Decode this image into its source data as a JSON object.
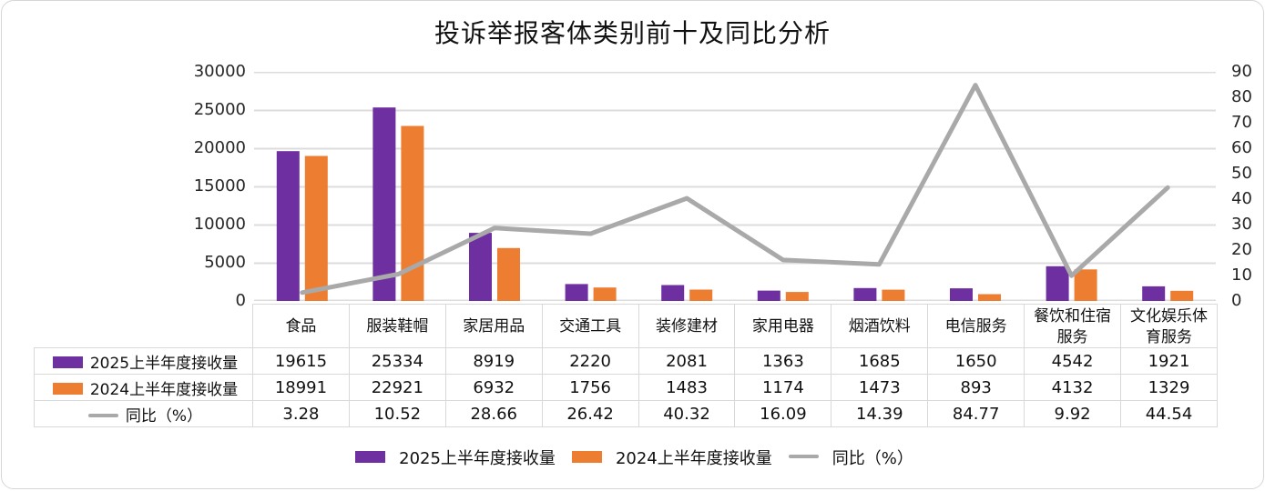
{
  "title": "投诉举报客体类别前十及同比分析",
  "colors": {
    "bar_2025": "#6E2FA0",
    "bar_2024": "#ED7D31",
    "line_yoy": "#A9A9A9",
    "grid": "#DCDCDC",
    "table_border": "#D9D9D9",
    "text": "#111111"
  },
  "chart_data": {
    "type": "bar+line combo with data table",
    "title": "投诉举报客体类别前十及同比分析",
    "categories": [
      "食品",
      "服装鞋帽",
      "家居用品",
      "交通工具",
      "装修建材",
      "家用电器",
      "烟酒饮料",
      "电信服务",
      "餐饮和住宿服务",
      "文化娱乐体育服务"
    ],
    "series": [
      {
        "name": "2025上半年度接收量",
        "type": "bar",
        "axis": "left",
        "color": "#6E2FA0",
        "values": [
          19615,
          25334,
          8919,
          2220,
          2081,
          1363,
          1685,
          1650,
          4542,
          1921
        ]
      },
      {
        "name": "2024上半年度接收量",
        "type": "bar",
        "axis": "left",
        "color": "#ED7D31",
        "values": [
          18991,
          22921,
          6932,
          1756,
          1483,
          1174,
          1473,
          893,
          4132,
          1329
        ]
      },
      {
        "name": "同比（%）",
        "type": "line",
        "axis": "right",
        "color": "#A9A9A9",
        "values": [
          3.28,
          10.52,
          28.66,
          26.42,
          40.32,
          16.09,
          14.39,
          84.77,
          9.92,
          44.54
        ]
      }
    ],
    "left_axis": {
      "min": 0,
      "max": 30000,
      "ticks": [
        0,
        5000,
        10000,
        15000,
        20000,
        25000,
        30000
      ]
    },
    "right_axis": {
      "min": 0,
      "max": 90,
      "ticks": [
        0,
        10,
        20,
        30,
        40,
        50,
        60,
        70,
        80,
        90
      ]
    },
    "grid": true,
    "legend_position": "bottom",
    "data_table_shown": true
  }
}
